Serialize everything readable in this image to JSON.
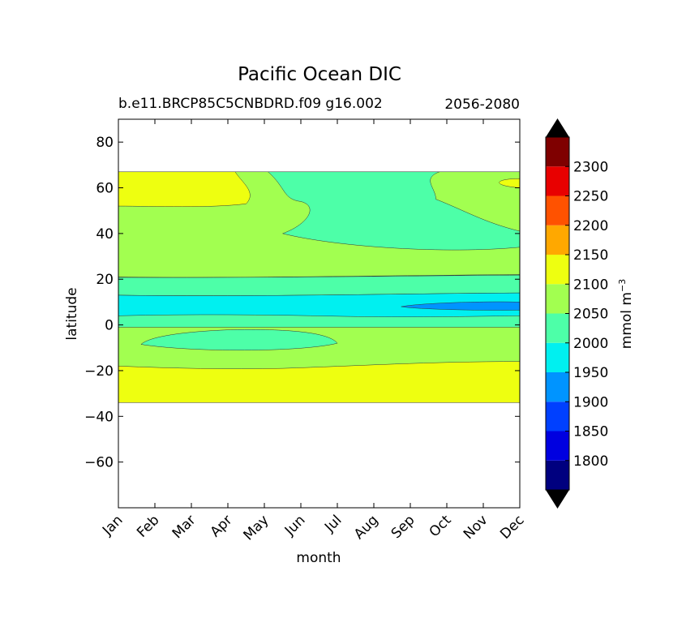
{
  "chart_data": {
    "type": "contour",
    "title": "Pacific Ocean DIC",
    "subtitle_left": "b.e11.BRCP85C5CNBDRD.f09 g16.002",
    "subtitle_right": "2056-2080",
    "xlabel": "month",
    "ylabel": "latitude",
    "x_categories": [
      "Jan",
      "Feb",
      "Mar",
      "Apr",
      "May",
      "Jun",
      "Jul",
      "Aug",
      "Sep",
      "Oct",
      "Nov",
      "Dec"
    ],
    "ylim": [
      -80,
      90
    ],
    "y_ticks": [
      80,
      60,
      40,
      20,
      0,
      -20,
      -40,
      -60
    ],
    "y_tick_labels": [
      "80",
      "60",
      "40",
      "20",
      "0",
      "−20",
      "−40",
      "−60"
    ],
    "data_lat_range": [
      -34,
      67
    ],
    "colorbar": {
      "label_base": "mmol m",
      "label_exp": "−3",
      "levels": [
        1750,
        1800,
        1850,
        1900,
        1950,
        2000,
        2050,
        2100,
        2150,
        2200,
        2250,
        2300,
        2350
      ],
      "tick_labels": [
        "1800",
        "1850",
        "1900",
        "1950",
        "2000",
        "2050",
        "2100",
        "2150",
        "2200",
        "2250",
        "2300"
      ],
      "colors": [
        "#00007f",
        "#0000e0",
        "#0040ff",
        "#0094ff",
        "#00f0f0",
        "#4dffa8",
        "#a2ff50",
        "#eeff10",
        "#ffa800",
        "#ff5200",
        "#e80000",
        "#7f0000"
      ],
      "extend": "both"
    },
    "regions": [
      {
        "name": "southern-high-band",
        "band": "2100-2150",
        "lat_min": -34,
        "lat_max": -18
      },
      {
        "name": "southern-mid-band",
        "band": "2050-2100",
        "lat_min": -18,
        "lat_max": -1
      },
      {
        "name": "southern-tropical-patch",
        "band": "2000-2050",
        "lat_center": -7,
        "lon_months": [
          0.6,
          6.0
        ]
      },
      {
        "name": "equatorial-band",
        "band": "2000-2050",
        "lat_min": -1,
        "lat_max": 4
      },
      {
        "name": "equatorial-low-band",
        "band": "1950-2000",
        "lat_min": 4,
        "lat_max": 13
      },
      {
        "name": "equatorial-min-patch",
        "band": "1900-1950",
        "lat_center": 8,
        "lon_months": [
          7.7,
          11.0
        ]
      },
      {
        "name": "northern-tropical-band",
        "band": "2000-2050",
        "lat_min": 13,
        "lat_max": 21
      },
      {
        "name": "northern-mid-band",
        "band": "2050-2100",
        "lat_min": 21,
        "lat_max": 52
      },
      {
        "name": "northern-summer-tongue",
        "band": "2000-2050",
        "lat_min": 33,
        "lat_max": 67,
        "lon_months": [
          4.1,
          11.0
        ]
      },
      {
        "name": "northern-high-band",
        "band": "2100-2150",
        "lat_min": 52,
        "lat_max": 67,
        "lon_months": [
          0,
          3.5
        ]
      }
    ]
  }
}
